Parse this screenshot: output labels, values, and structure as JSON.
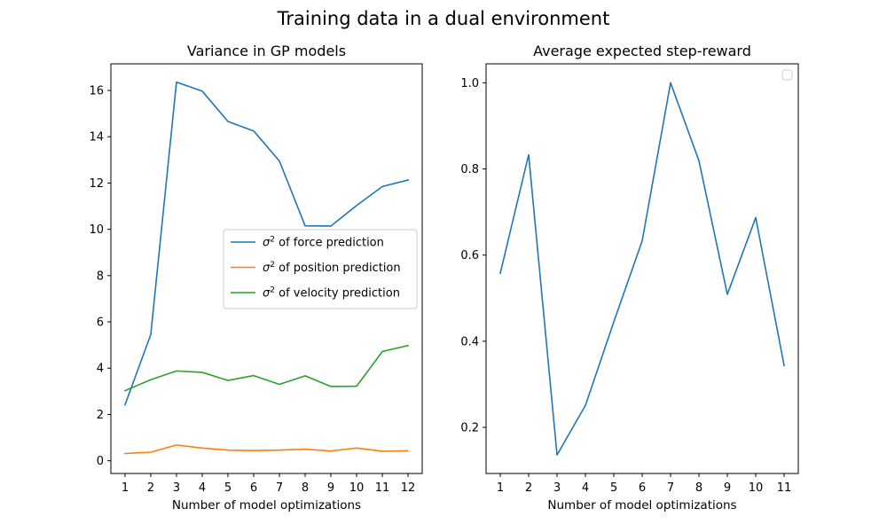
{
  "figure": {
    "suptitle": "Training data in a dual environment"
  },
  "chart_data": [
    {
      "type": "line",
      "title": "Variance in GP models",
      "xlabel": "Number of model optimizations",
      "ylabel": "",
      "x": [
        1,
        2,
        3,
        4,
        5,
        6,
        7,
        8,
        9,
        10,
        11,
        12
      ],
      "xlim": [
        0.45,
        12.55
      ],
      "ylim": [
        -0.55,
        17.15
      ],
      "xticks": [
        "1",
        "2",
        "3",
        "4",
        "5",
        "6",
        "7",
        "8",
        "9",
        "10",
        "11",
        "12"
      ],
      "yticks": [
        0,
        2,
        4,
        6,
        8,
        10,
        12,
        14,
        16
      ],
      "grid": false,
      "legend": {
        "placement": "center-right",
        "show": true
      },
      "series": [
        {
          "name": "σ² of force prediction",
          "name_base": "σ",
          "name_sup": "2",
          "name_rest": " of force prediction",
          "color": "#1f77b4",
          "values": [
            2.42,
            5.45,
            16.36,
            15.97,
            14.66,
            14.25,
            12.95,
            10.15,
            10.14,
            11.03,
            11.85,
            12.13
          ]
        },
        {
          "name": "σ² of position prediction",
          "name_base": "σ",
          "name_sup": "2",
          "name_rest": " of position prediction",
          "color": "#ff7f0e",
          "values": [
            0.31,
            0.37,
            0.68,
            0.55,
            0.46,
            0.44,
            0.46,
            0.5,
            0.42,
            0.55,
            0.41,
            0.43
          ]
        },
        {
          "name": "σ² of velocity prediction",
          "name_base": "σ",
          "name_sup": "2",
          "name_rest": " of velocity prediction",
          "color": "#2ca02c",
          "values": [
            3.03,
            3.5,
            3.88,
            3.82,
            3.47,
            3.68,
            3.3,
            3.67,
            3.21,
            3.22,
            4.72,
            4.98
          ]
        }
      ]
    },
    {
      "type": "line",
      "title": "Average expected step-reward",
      "xlabel": "Number of model optimizations",
      "ylabel": "",
      "x": [
        1,
        2,
        3,
        4,
        5,
        6,
        7,
        8,
        9,
        10,
        11
      ],
      "xlim": [
        0.5,
        11.5
      ],
      "ylim": [
        0.093,
        1.044
      ],
      "xticks": [
        "1",
        "2",
        "3",
        "4",
        "5",
        "6",
        "7",
        "8",
        "9",
        "10",
        "11"
      ],
      "yticks": [
        0.2,
        0.4,
        0.6,
        0.8,
        1.0
      ],
      "ytick_labels": [
        "0.2",
        "0.4",
        "0.6",
        "0.8",
        "1.0"
      ],
      "grid": false,
      "legend": {
        "placement": "top-right",
        "show": true,
        "empty": true
      },
      "series": [
        {
          "color": "#1f77b4",
          "values": [
            0.558,
            0.833,
            0.136,
            0.251,
            0.445,
            0.633,
            1.0,
            0.819,
            0.509,
            0.687,
            0.344
          ]
        }
      ]
    }
  ]
}
